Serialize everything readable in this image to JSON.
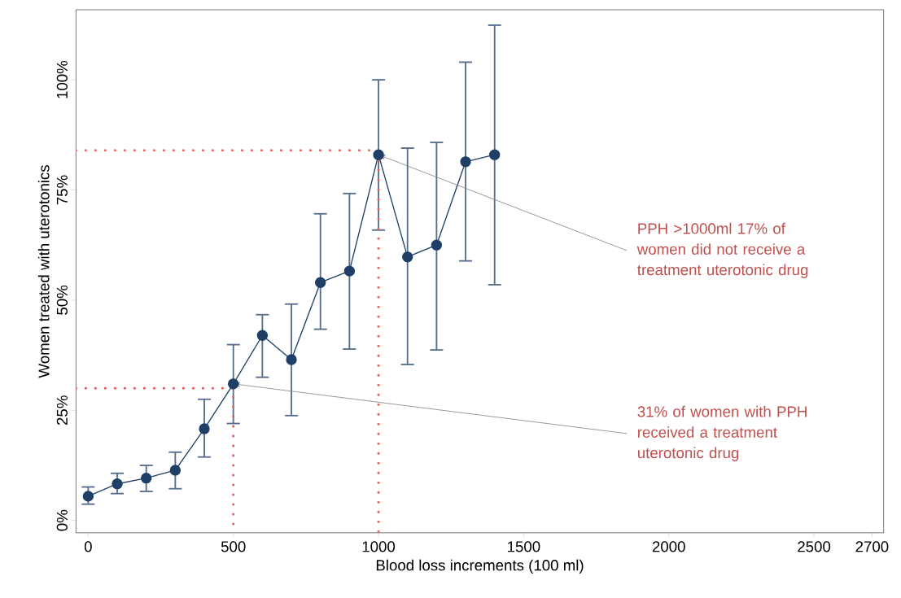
{
  "chart_data": {
    "type": "line",
    "xlabel": "Blood loss increments (100 ml)",
    "ylabel": "Women treated with uterotonics",
    "xlim": [
      -42,
      2740
    ],
    "ylim": [
      -2.8,
      115.9
    ],
    "xticks": [
      0,
      500,
      1000,
      1500,
      2000,
      2500,
      2700
    ],
    "yticks": [
      {
        "value": 0,
        "label": "0%"
      },
      {
        "value": 25,
        "label": "25%"
      },
      {
        "value": 50,
        "label": "50%"
      },
      {
        "value": 75,
        "label": "75%"
      },
      {
        "value": 100,
        "label": "100%"
      }
    ],
    "grid": false,
    "marker": "circle",
    "line_style": "solid",
    "series": [
      {
        "color": "#1f3f66",
        "x": [
          0,
          100,
          200,
          300,
          400,
          500,
          600,
          700,
          800,
          900,
          1000,
          1100,
          1200,
          1300,
          1400
        ],
        "values": [
          5.5,
          8.3,
          9.6,
          11.4,
          20.8,
          31,
          42,
          36.5,
          54,
          56.6,
          83,
          59.8,
          62.5,
          81.4,
          83
        ],
        "errors": [
          [
            3.7,
            7.6
          ],
          [
            6.1,
            10.7
          ],
          [
            6.6,
            12.5
          ],
          [
            7.2,
            15.5
          ],
          [
            14.4,
            27.5
          ],
          [
            22,
            39.9
          ],
          [
            32.5,
            46.7
          ],
          [
            23.8,
            49.1
          ],
          [
            43.4,
            69.6
          ],
          [
            38.9,
            74.2
          ],
          [
            65.9,
            100
          ],
          [
            35.4,
            84.5
          ],
          [
            38.7,
            85.8
          ],
          [
            58.9,
            104
          ],
          [
            53.5,
            112.4
          ]
        ]
      },
      {
        "color": "#e06666",
        "line_style": "dotted",
        "marker": "none",
        "x": [
          -42,
          500,
          500
        ],
        "values": [
          30,
          30,
          -2.8
        ]
      },
      {
        "color": "#e06666",
        "line_style": "dotted",
        "marker": "none",
        "x": [
          -42,
          1000,
          1000
        ],
        "values": [
          84,
          84,
          -2.8
        ]
      }
    ],
    "annotations": [
      {
        "text": "PPH  >1000ml 17% of women did not receive a treatment uterotonic drug",
        "x": 1000,
        "y": 83
      },
      {
        "text": "31% of women with PPH received a treatment uterotonic drug",
        "x": 500,
        "y": 31
      }
    ]
  }
}
